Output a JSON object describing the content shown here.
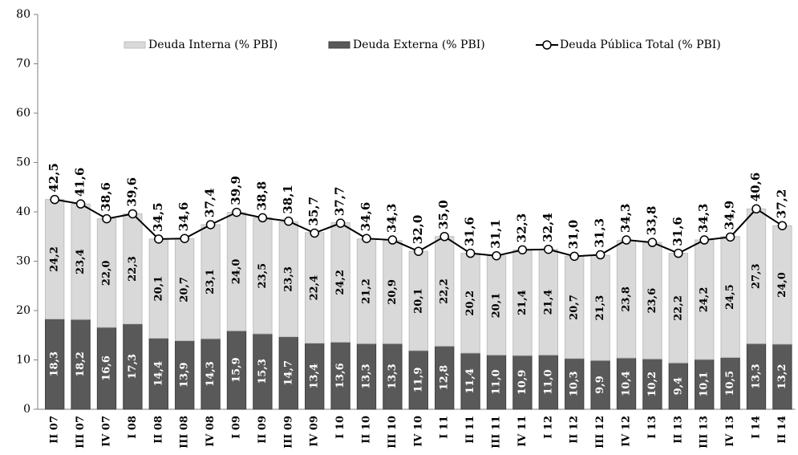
{
  "chart_data": {
    "type": "bar",
    "categories": [
      "II 07",
      "III 07",
      "IV 07",
      "I 08",
      "II 08",
      "III 08",
      "IV 08",
      "I 09",
      "II 09",
      "III 09",
      "IV 09",
      "I 10",
      "II 10",
      "III 10",
      "IV 10",
      "I 11",
      "II 11",
      "III 11",
      "IV 11",
      "I 12",
      "II 12",
      "III 12",
      "IV 12",
      "I 13",
      "II 13",
      "III 13",
      "IV 13",
      "I 14",
      "II 14"
    ],
    "series": [
      {
        "name": "Deuda Interna (% PBI)",
        "color": "#d9d9d9",
        "type": "bar",
        "values": [
          24.2,
          23.4,
          22.0,
          22.3,
          20.1,
          20.7,
          23.1,
          24.0,
          23.5,
          23.3,
          22.4,
          24.2,
          21.2,
          20.9,
          20.1,
          22.2,
          20.2,
          20.1,
          21.4,
          21.4,
          20.7,
          21.3,
          23.8,
          23.6,
          22.2,
          24.2,
          24.5,
          27.3,
          24.0
        ],
        "value_labels": [
          "24,2",
          "23,4",
          "22,0",
          "22,3",
          "20,1",
          "20,7",
          "23,1",
          "24,0",
          "23,5",
          "23,3",
          "22,4",
          "24,2",
          "21,2",
          "20,9",
          "20,1",
          "22,2",
          "20,2",
          "20,1",
          "21,4",
          "21,4",
          "20,7",
          "21,3",
          "23,8",
          "23,6",
          "22,2",
          "24,2",
          "24,5",
          "27,3",
          "24,0"
        ]
      },
      {
        "name": "Deuda Externa (% PBI)",
        "color": "#595959",
        "type": "bar",
        "values": [
          18.3,
          18.2,
          16.6,
          17.3,
          14.4,
          13.9,
          14.3,
          15.9,
          15.3,
          14.7,
          13.4,
          13.6,
          13.3,
          13.3,
          11.9,
          12.8,
          11.4,
          11.0,
          10.9,
          11.0,
          10.3,
          9.9,
          10.4,
          10.2,
          9.4,
          10.1,
          10.5,
          13.3,
          13.2
        ],
        "value_labels": [
          "18,3",
          "18,2",
          "16,6",
          "17,3",
          "14,4",
          "13,9",
          "14,3",
          "15,9",
          "15,3",
          "14,7",
          "13,4",
          "13,6",
          "13,3",
          "13,3",
          "11,9",
          "12,8",
          "11,4",
          "11,0",
          "10,9",
          "11,0",
          "10,3",
          "9,9",
          "10,4",
          "10,2",
          "9,4",
          "10,1",
          "10,5",
          "13,3",
          "13,2"
        ]
      },
      {
        "name": "Deuda Pública Total (% PBI)",
        "color": "#000000",
        "type": "line",
        "values": [
          42.5,
          41.6,
          38.6,
          39.6,
          34.5,
          34.6,
          37.4,
          39.9,
          38.8,
          38.1,
          35.7,
          37.7,
          34.6,
          34.3,
          32.0,
          35.0,
          31.6,
          31.1,
          32.3,
          32.4,
          31.0,
          31.3,
          34.3,
          33.8,
          31.6,
          34.3,
          34.9,
          40.6,
          37.2
        ],
        "value_labels": [
          "42,5",
          "41,6",
          "38,6",
          "39,6",
          "34,5",
          "34,6",
          "37,4",
          "39,9",
          "38,8",
          "38,1",
          "35,7",
          "37,7",
          "34,6",
          "34,3",
          "32,0",
          "35,0",
          "31,6",
          "31,1",
          "32,3",
          "32,4",
          "31,0",
          "31,3",
          "34,3",
          "33,8",
          "31,6",
          "34,3",
          "34,9",
          "40,6",
          "37,2"
        ]
      }
    ],
    "ylim": [
      0,
      80
    ],
    "yticks": [
      0,
      10,
      20,
      30,
      40,
      50,
      60,
      70,
      80
    ]
  }
}
